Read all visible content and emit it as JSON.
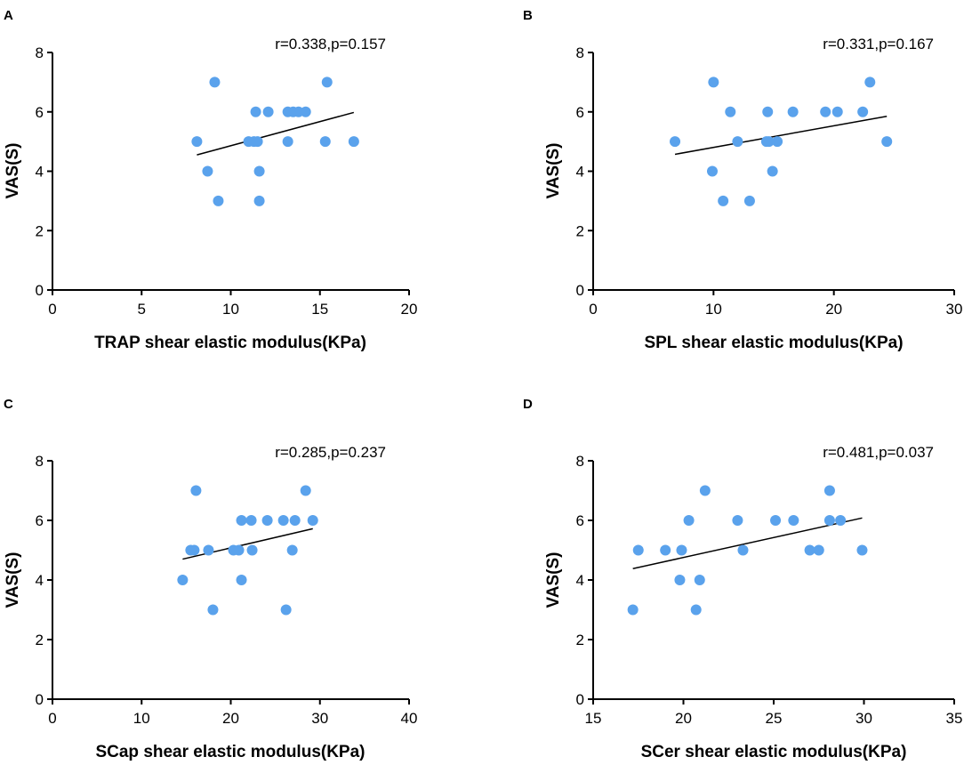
{
  "colors": {
    "point": "#5aa2ec",
    "axis": "#000000",
    "fit_line": "#000000"
  },
  "chart_data": [
    {
      "panel": "A",
      "type": "scatter",
      "title": "",
      "stat_text": "r=0.338,p=0.157",
      "xlabel": "TRAP shear elastic modulus(KPa)",
      "ylabel": "VAS(S)",
      "xlim": [
        0,
        20
      ],
      "ylim": [
        0,
        8
      ],
      "xticks": [
        0,
        5,
        10,
        15,
        20
      ],
      "yticks": [
        0,
        2,
        4,
        6,
        8
      ],
      "points": [
        {
          "x": 8.1,
          "y": 5
        },
        {
          "x": 8.7,
          "y": 4
        },
        {
          "x": 9.1,
          "y": 7
        },
        {
          "x": 9.3,
          "y": 3
        },
        {
          "x": 11.0,
          "y": 5
        },
        {
          "x": 11.3,
          "y": 5
        },
        {
          "x": 11.4,
          "y": 6
        },
        {
          "x": 11.5,
          "y": 5
        },
        {
          "x": 11.6,
          "y": 4
        },
        {
          "x": 11.6,
          "y": 3
        },
        {
          "x": 12.1,
          "y": 6
        },
        {
          "x": 13.2,
          "y": 6
        },
        {
          "x": 13.2,
          "y": 5
        },
        {
          "x": 13.5,
          "y": 6
        },
        {
          "x": 13.8,
          "y": 6
        },
        {
          "x": 14.2,
          "y": 6
        },
        {
          "x": 15.3,
          "y": 5
        },
        {
          "x": 15.4,
          "y": 7
        },
        {
          "x": 16.9,
          "y": 5
        }
      ],
      "fit": {
        "x": [
          8.1,
          16.9
        ],
        "y": [
          4.55,
          5.98
        ]
      }
    },
    {
      "panel": "B",
      "type": "scatter",
      "title": "",
      "stat_text": "r=0.331,p=0.167",
      "xlabel": "SPL shear elastic modulus(KPa)",
      "ylabel": "VAS(S)",
      "xlim": [
        0,
        30
      ],
      "ylim": [
        0,
        8
      ],
      "xticks": [
        0,
        10,
        20,
        30
      ],
      "yticks": [
        0,
        2,
        4,
        6,
        8
      ],
      "points": [
        {
          "x": 6.8,
          "y": 5
        },
        {
          "x": 9.9,
          "y": 4
        },
        {
          "x": 10.0,
          "y": 7
        },
        {
          "x": 10.8,
          "y": 3
        },
        {
          "x": 11.4,
          "y": 6
        },
        {
          "x": 12.0,
          "y": 5
        },
        {
          "x": 13.0,
          "y": 3
        },
        {
          "x": 14.4,
          "y": 5
        },
        {
          "x": 14.5,
          "y": 6
        },
        {
          "x": 14.6,
          "y": 5
        },
        {
          "x": 14.9,
          "y": 4
        },
        {
          "x": 15.3,
          "y": 5
        },
        {
          "x": 16.6,
          "y": 6
        },
        {
          "x": 19.3,
          "y": 6
        },
        {
          "x": 20.3,
          "y": 6
        },
        {
          "x": 22.4,
          "y": 6
        },
        {
          "x": 23.0,
          "y": 7
        },
        {
          "x": 24.4,
          "y": 5
        }
      ],
      "fit": {
        "x": [
          6.8,
          24.4
        ],
        "y": [
          4.57,
          5.85
        ]
      }
    },
    {
      "panel": "C",
      "type": "scatter",
      "title": "",
      "stat_text": "r=0.285,p=0.237",
      "xlabel": "SCap shear elastic modulus(KPa)",
      "ylabel": "VAS(S)",
      "xlim": [
        0,
        40
      ],
      "ylim": [
        0,
        8
      ],
      "xticks": [
        0,
        10,
        20,
        30,
        40
      ],
      "yticks": [
        0,
        2,
        4,
        6,
        8
      ],
      "points": [
        {
          "x": 14.6,
          "y": 4
        },
        {
          "x": 15.5,
          "y": 5
        },
        {
          "x": 15.9,
          "y": 5
        },
        {
          "x": 16.1,
          "y": 7
        },
        {
          "x": 17.5,
          "y": 5
        },
        {
          "x": 18.0,
          "y": 3
        },
        {
          "x": 20.3,
          "y": 5
        },
        {
          "x": 20.9,
          "y": 5
        },
        {
          "x": 21.2,
          "y": 6
        },
        {
          "x": 21.2,
          "y": 4
        },
        {
          "x": 22.3,
          "y": 6
        },
        {
          "x": 22.4,
          "y": 5
        },
        {
          "x": 24.1,
          "y": 6
        },
        {
          "x": 25.9,
          "y": 6
        },
        {
          "x": 26.2,
          "y": 3
        },
        {
          "x": 26.9,
          "y": 5
        },
        {
          "x": 27.2,
          "y": 6
        },
        {
          "x": 28.4,
          "y": 7
        },
        {
          "x": 29.2,
          "y": 6
        }
      ],
      "fit": {
        "x": [
          14.6,
          29.2
        ],
        "y": [
          4.7,
          5.72
        ]
      }
    },
    {
      "panel": "D",
      "type": "scatter",
      "title": "",
      "stat_text": "r=0.481,p=0.037",
      "xlabel": "SCer shear elastic modulus(KPa)",
      "ylabel": "VAS(S)",
      "xlim": [
        15,
        35
      ],
      "ylim": [
        0,
        8
      ],
      "xticks": [
        15,
        20,
        25,
        30,
        35
      ],
      "yticks": [
        0,
        2,
        4,
        6,
        8
      ],
      "points": [
        {
          "x": 17.2,
          "y": 3
        },
        {
          "x": 17.5,
          "y": 5
        },
        {
          "x": 19.0,
          "y": 5
        },
        {
          "x": 19.8,
          "y": 4
        },
        {
          "x": 19.9,
          "y": 5
        },
        {
          "x": 20.3,
          "y": 6
        },
        {
          "x": 20.7,
          "y": 3
        },
        {
          "x": 20.9,
          "y": 4
        },
        {
          "x": 21.2,
          "y": 7
        },
        {
          "x": 23.0,
          "y": 6
        },
        {
          "x": 23.3,
          "y": 5
        },
        {
          "x": 25.1,
          "y": 6
        },
        {
          "x": 26.1,
          "y": 6
        },
        {
          "x": 27.0,
          "y": 5
        },
        {
          "x": 27.5,
          "y": 5
        },
        {
          "x": 28.1,
          "y": 7
        },
        {
          "x": 28.1,
          "y": 6
        },
        {
          "x": 28.7,
          "y": 6
        },
        {
          "x": 29.9,
          "y": 5
        }
      ],
      "fit": {
        "x": [
          17.2,
          29.9
        ],
        "y": [
          4.38,
          6.08
        ]
      }
    }
  ]
}
